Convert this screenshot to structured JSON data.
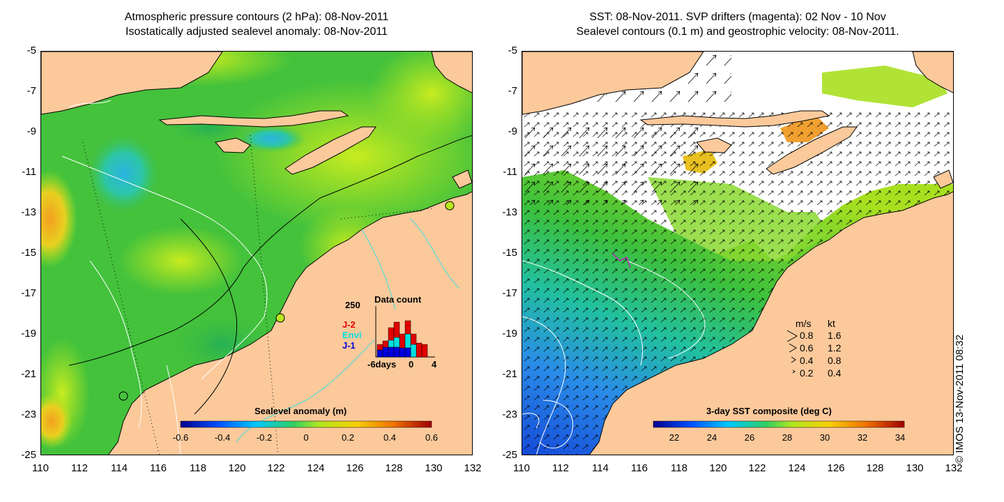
{
  "left": {
    "title_line1": "Atmospheric pressure contours (2 hPa): 08-Nov-2011",
    "title_line2": "Isostatically adjusted sealevel anomaly: 08-Nov-2011",
    "colorbar_label": "Sealevel anomaly (m)",
    "colorbar_ticks": [
      "-0.6",
      "-0.4",
      "-0.2",
      "0",
      "0.2",
      "0.4",
      "0.6"
    ],
    "inset": {
      "title": "Data count",
      "ymax": "250",
      "x_start": "-6days",
      "x_mid": "0",
      "x_end": "4",
      "series": [
        {
          "name": "J-2",
          "color": "#e00000"
        },
        {
          "name": "Envi",
          "color": "#00e0e0"
        },
        {
          "name": "J-1",
          "color": "#0000e0"
        }
      ]
    }
  },
  "right": {
    "title_line1": "SST: 08-Nov-2011. SVP drifters (magenta): 02 Nov - 10 Nov",
    "title_line2": "Sealevel contours (0.1 m) and geostrophic velocity: 08-Nov-2011.",
    "colorbar_label": "3-day SST composite (deg C)",
    "colorbar_ticks": [
      "22",
      "24",
      "26",
      "28",
      "30",
      "32",
      "34"
    ],
    "velocity_legend": {
      "header_ms": "m/s",
      "header_kt": "kt",
      "rows": [
        {
          "ms": "0.8",
          "kt": "1.6"
        },
        {
          "ms": "0.6",
          "kt": "1.2"
        },
        {
          "ms": "0.4",
          "kt": "0.8"
        },
        {
          "ms": "0.2",
          "kt": "0.4"
        }
      ]
    }
  },
  "axes": {
    "y_ticks": [
      "-5",
      "-7",
      "-9",
      "-11",
      "-13",
      "-15",
      "-17",
      "-19",
      "-21",
      "-23",
      "-25"
    ],
    "x_ticks": [
      "110",
      "112",
      "114",
      "116",
      "118",
      "120",
      "122",
      "124",
      "126",
      "128",
      "130",
      "132"
    ]
  },
  "copyright": "© IMOS 13-Nov-2011 08:32",
  "colors": {
    "land": "#fcc99b",
    "ocean_green": "#44c23c",
    "ocean_yellowgreen": "#b8e81c",
    "ocean_cyan": "#26b8d8",
    "ocean_orange": "#f4a020",
    "sst_blue": "#2a7ce0",
    "contour_white": "#ffffff",
    "contour_cyan": "#3fe0e0"
  }
}
